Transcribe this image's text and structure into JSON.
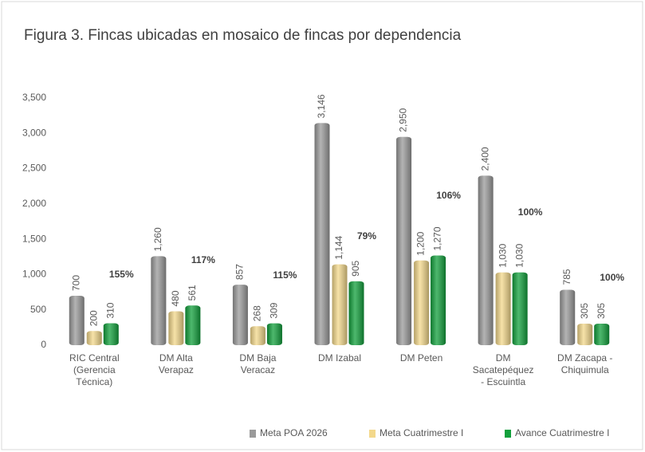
{
  "chart_data": {
    "type": "bar",
    "title": "Figura 3. Fincas ubicadas en mosaico de fincas por dependencia",
    "categories": [
      [
        "RIC Central",
        "(Gerencia",
        "Técnica)"
      ],
      [
        "DM Alta",
        "Verapaz"
      ],
      [
        "DM Baja",
        "Veracaz"
      ],
      [
        "DM Izabal"
      ],
      [
        "DM Peten"
      ],
      [
        "DM",
        "Sacatepéquez",
        "- Escuintla"
      ],
      [
        "DM Zacapa -",
        "Chiquimula"
      ]
    ],
    "series": [
      {
        "name": "Meta POA 2026",
        "color": "#9a9a9a",
        "values": [
          700,
          1260,
          857,
          3146,
          2950,
          2400,
          785
        ],
        "value_labels": [
          "700",
          "1,260",
          "857",
          "3,146",
          "2,950",
          "2,400",
          "785"
        ]
      },
      {
        "name": "Meta Cuatrimestre I",
        "color": "#f3d88b",
        "values": [
          200,
          480,
          268,
          1144,
          1200,
          1030,
          305
        ],
        "value_labels": [
          "200",
          "480",
          "268",
          "1,144",
          "1,200",
          "1,030",
          "305"
        ]
      },
      {
        "name": "Avance Cuatrimestre I",
        "color": "#12a03c",
        "values": [
          310,
          561,
          309,
          905,
          1270,
          1030,
          305
        ],
        "value_labels": [
          "310",
          "561",
          "309",
          "905",
          "1,270",
          "1,030",
          "305"
        ]
      }
    ],
    "annotations": [
      "155%",
      "117%",
      "115%",
      "79%",
      "106%",
      "100%",
      "100%"
    ],
    "ylim": [
      0,
      3500
    ],
    "yticks": [
      0,
      500,
      {
        "value": 1000,
        "label": "1,000"
      },
      {
        "value": 1500,
        "label": "1,500"
      },
      {
        "value": 2000,
        "label": "2,000"
      },
      {
        "value": 2500,
        "label": "2,500"
      },
      {
        "value": 3000,
        "label": "3,000"
      },
      {
        "value": 3500,
        "label": "3,500"
      }
    ],
    "legend": "bottom"
  }
}
